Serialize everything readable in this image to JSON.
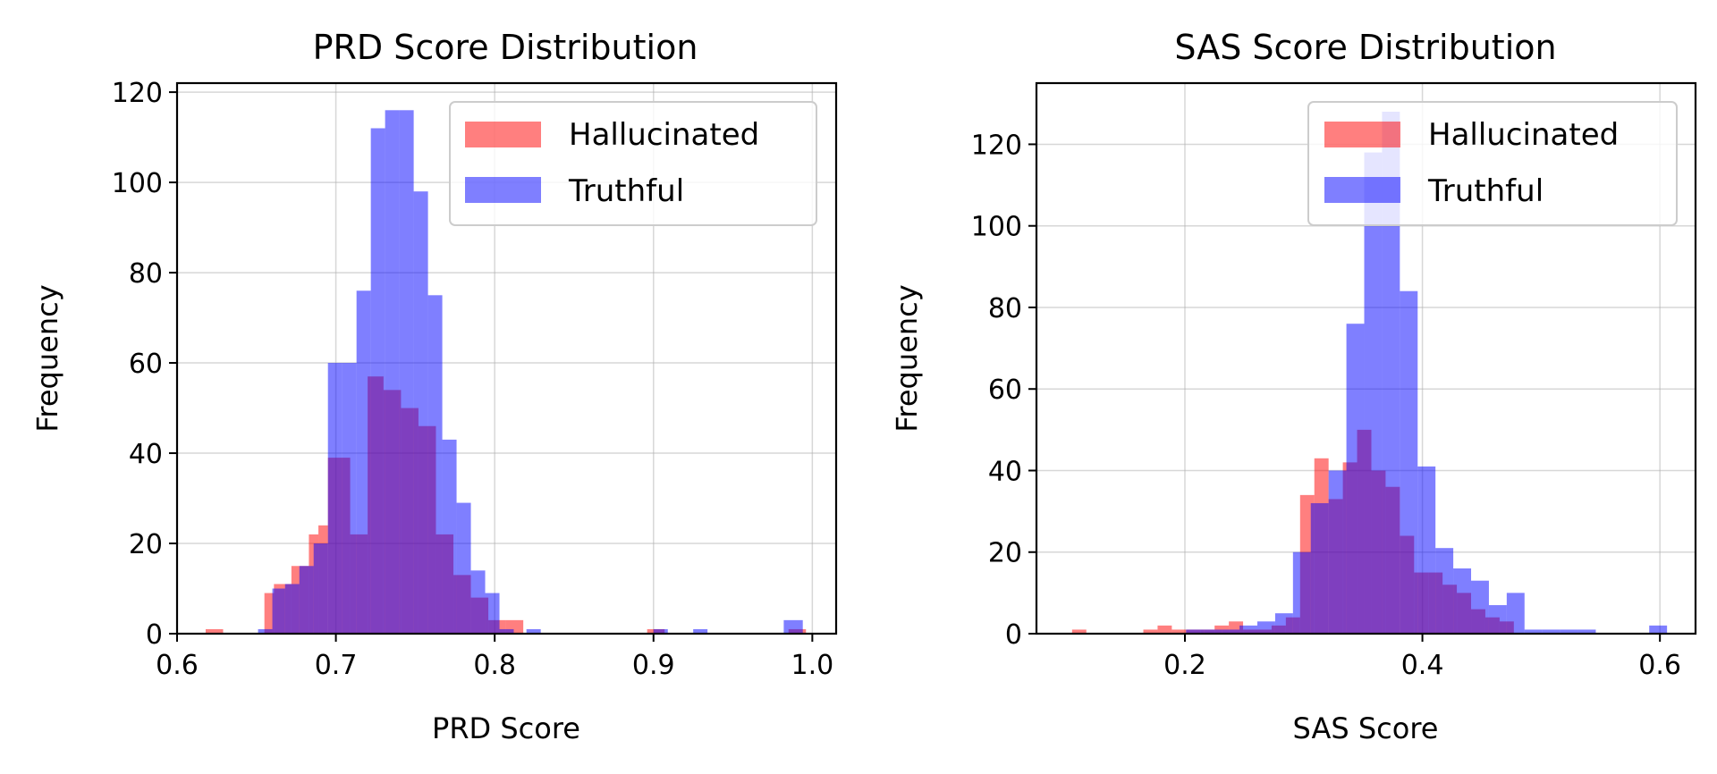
{
  "colors": {
    "hallucinated": "#ff0000",
    "truthful": "#0000ff",
    "bar_alpha": 0.5
  },
  "chart_data": [
    {
      "type": "bar",
      "title": "PRD Score Distribution",
      "xlabel": "PRD Score",
      "ylabel": "Frequency",
      "xlim": [
        0.6,
        1.015
      ],
      "ylim": [
        0,
        122
      ],
      "xticks": [
        0.6,
        0.7,
        0.8,
        0.9,
        1.0
      ],
      "xtick_labels": [
        "0.6",
        "0.7",
        "0.8",
        "0.9",
        "1.0"
      ],
      "yticks": [
        0,
        20,
        40,
        60,
        80,
        100,
        120
      ],
      "ytick_labels": [
        "0",
        "20",
        "40",
        "60",
        "80",
        "100",
        "120"
      ],
      "grid": true,
      "legend": "top-right",
      "series": [
        {
          "name": "Hallucinated",
          "color": "#ff0000",
          "bins": [
            [
              0.618,
              0.629,
              1
            ],
            [
              0.655,
              0.661,
              9
            ],
            [
              0.661,
              0.672,
              11
            ],
            [
              0.672,
              0.683,
              15
            ],
            [
              0.683,
              0.689,
              22
            ],
            [
              0.689,
              0.695,
              24
            ],
            [
              0.695,
              0.7,
              39
            ],
            [
              0.7,
              0.709,
              39
            ],
            [
              0.709,
              0.72,
              22
            ],
            [
              0.72,
              0.73,
              57
            ],
            [
              0.73,
              0.741,
              54
            ],
            [
              0.741,
              0.752,
              50
            ],
            [
              0.752,
              0.763,
              46
            ],
            [
              0.763,
              0.774,
              22
            ],
            [
              0.774,
              0.785,
              13
            ],
            [
              0.785,
              0.796,
              8
            ],
            [
              0.796,
              0.807,
              3
            ],
            [
              0.807,
              0.818,
              3
            ],
            [
              0.896,
              0.907,
              1
            ],
            [
              0.985,
              0.996,
              1
            ]
          ]
        },
        {
          "name": "Truthful",
          "color": "#0000ff",
          "bins": [
            [
              0.651,
              0.66,
              1
            ],
            [
              0.66,
              0.668,
              10
            ],
            [
              0.668,
              0.677,
              11
            ],
            [
              0.677,
              0.686,
              15
            ],
            [
              0.686,
              0.695,
              20
            ],
            [
              0.695,
              0.704,
              60
            ],
            [
              0.704,
              0.713,
              60
            ],
            [
              0.713,
              0.722,
              76
            ],
            [
              0.722,
              0.731,
              112
            ],
            [
              0.731,
              0.74,
              116
            ],
            [
              0.74,
              0.749,
              116
            ],
            [
              0.749,
              0.758,
              98
            ],
            [
              0.758,
              0.767,
              75
            ],
            [
              0.767,
              0.776,
              43
            ],
            [
              0.776,
              0.785,
              29
            ],
            [
              0.785,
              0.794,
              14
            ],
            [
              0.794,
              0.803,
              9
            ],
            [
              0.803,
              0.812,
              1
            ],
            [
              0.82,
              0.829,
              1
            ],
            [
              0.9,
              0.909,
              1
            ],
            [
              0.925,
              0.934,
              1
            ],
            [
              0.982,
              0.994,
              3
            ]
          ]
        }
      ]
    },
    {
      "type": "bar",
      "title": "SAS Score Distribution",
      "xlabel": "SAS Score",
      "ylabel": "Frequency",
      "xlim": [
        0.075,
        0.63
      ],
      "ylim": [
        0,
        135
      ],
      "xticks": [
        0.2,
        0.4,
        0.6
      ],
      "xtick_labels": [
        "0.2",
        "0.4",
        "0.6"
      ],
      "yticks": [
        0,
        20,
        40,
        60,
        80,
        100,
        120
      ],
      "ytick_labels": [
        "0",
        "20",
        "40",
        "60",
        "80",
        "100",
        "120"
      ],
      "grid": true,
      "legend": "top-right",
      "series": [
        {
          "name": "Hallucinated",
          "color": "#ff0000",
          "bins": [
            [
              0.105,
              0.117,
              1
            ],
            [
              0.165,
              0.177,
              1
            ],
            [
              0.177,
              0.189,
              2
            ],
            [
              0.189,
              0.201,
              1
            ],
            [
              0.201,
              0.213,
              1
            ],
            [
              0.213,
              0.225,
              1
            ],
            [
              0.225,
              0.237,
              2
            ],
            [
              0.237,
              0.249,
              3
            ],
            [
              0.249,
              0.261,
              1
            ],
            [
              0.261,
              0.273,
              1
            ],
            [
              0.273,
              0.285,
              2
            ],
            [
              0.285,
              0.297,
              4
            ],
            [
              0.297,
              0.309,
              34
            ],
            [
              0.309,
              0.321,
              43
            ],
            [
              0.321,
              0.333,
              33
            ],
            [
              0.333,
              0.345,
              42
            ],
            [
              0.345,
              0.357,
              50
            ],
            [
              0.357,
              0.369,
              40
            ],
            [
              0.369,
              0.381,
              36
            ],
            [
              0.381,
              0.393,
              24
            ],
            [
              0.393,
              0.405,
              15
            ],
            [
              0.405,
              0.417,
              15
            ],
            [
              0.417,
              0.429,
              12
            ],
            [
              0.429,
              0.441,
              10
            ],
            [
              0.441,
              0.453,
              6
            ],
            [
              0.453,
              0.465,
              4
            ],
            [
              0.465,
              0.477,
              3
            ]
          ]
        },
        {
          "name": "Truthful",
          "color": "#0000ff",
          "bins": [
            [
              0.201,
              0.216,
              1
            ],
            [
              0.216,
              0.231,
              1
            ],
            [
              0.231,
              0.246,
              1
            ],
            [
              0.246,
              0.261,
              2
            ],
            [
              0.261,
              0.276,
              3
            ],
            [
              0.276,
              0.291,
              5
            ],
            [
              0.291,
              0.306,
              20
            ],
            [
              0.306,
              0.321,
              32
            ],
            [
              0.321,
              0.336,
              40
            ],
            [
              0.336,
              0.351,
              76
            ],
            [
              0.351,
              0.366,
              118
            ],
            [
              0.366,
              0.381,
              128
            ],
            [
              0.381,
              0.396,
              84
            ],
            [
              0.396,
              0.411,
              41
            ],
            [
              0.411,
              0.426,
              21
            ],
            [
              0.426,
              0.441,
              16
            ],
            [
              0.441,
              0.456,
              13
            ],
            [
              0.456,
              0.471,
              7
            ],
            [
              0.471,
              0.486,
              10
            ],
            [
              0.486,
              0.501,
              1
            ],
            [
              0.501,
              0.516,
              1
            ],
            [
              0.516,
              0.531,
              1
            ],
            [
              0.531,
              0.546,
              1
            ],
            [
              0.591,
              0.606,
              2
            ]
          ]
        }
      ]
    }
  ]
}
